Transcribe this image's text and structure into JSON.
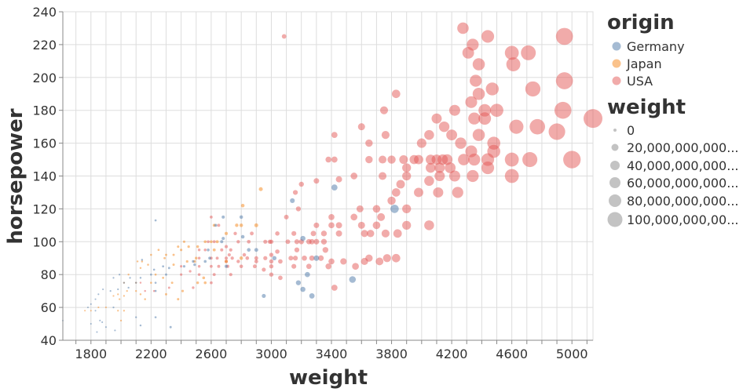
{
  "chart_data": {
    "type": "scatter",
    "xlabel": "weight",
    "ylabel": "horsepower",
    "xlim": [
      1613,
      5140
    ],
    "ylim": [
      40,
      240
    ],
    "x_ticks": [
      "1800",
      "2200",
      "2600",
      "3000",
      "3400",
      "3800",
      "4200",
      "4600",
      "5000"
    ],
    "y_ticks": [
      "40",
      "60",
      "80",
      "100",
      "120",
      "140",
      "160",
      "180",
      "200",
      "220",
      "240"
    ],
    "grid": true,
    "legend_placement": "right",
    "color_legend": {
      "title": "origin",
      "items": [
        {
          "label": "Germany",
          "color": "#4c78a8"
        },
        {
          "label": "Japan",
          "color": "#f58518"
        },
        {
          "label": "USA",
          "color": "#e45756"
        }
      ]
    },
    "size_legend": {
      "title": "weight",
      "items": [
        {
          "label": "0",
          "value": 0
        },
        {
          "label": "20,000,000,000...",
          "value": 20000000000
        },
        {
          "label": "40,000,000,000...",
          "value": 40000000000
        },
        {
          "label": "60,000,000,000...",
          "value": 60000000000
        },
        {
          "label": "80,000,000,000...",
          "value": 80000000000
        },
        {
          "label": "100,000,000,00...",
          "value": 100000000000
        }
      ]
    },
    "series": [
      {
        "name": "USA",
        "color": "#e45756",
        "points": [
          [
            3085,
            225
          ],
          [
            4275,
            230
          ],
          [
            4340,
            220
          ],
          [
            4440,
            225
          ],
          [
            4950,
            225
          ],
          [
            4310,
            215
          ],
          [
            4600,
            215
          ],
          [
            4710,
            215
          ],
          [
            4380,
            208
          ],
          [
            4610,
            208
          ],
          [
            4360,
            198
          ],
          [
            4950,
            198
          ],
          [
            4380,
            190
          ],
          [
            4470,
            193
          ],
          [
            4740,
            193
          ],
          [
            4330,
            185
          ],
          [
            4420,
            180
          ],
          [
            4220,
            180
          ],
          [
            3830,
            190
          ],
          [
            3750,
            180
          ],
          [
            4100,
            175
          ],
          [
            4500,
            180
          ],
          [
            4940,
            180
          ],
          [
            5140,
            175
          ],
          [
            4350,
            175
          ],
          [
            4420,
            175
          ],
          [
            4630,
            170
          ],
          [
            4770,
            170
          ],
          [
            4900,
            167
          ],
          [
            4150,
            170
          ],
          [
            4200,
            165
          ],
          [
            4380,
            165
          ],
          [
            3600,
            170
          ],
          [
            3760,
            165
          ],
          [
            3420,
            165
          ],
          [
            3650,
            160
          ],
          [
            4050,
            165
          ],
          [
            4260,
            160
          ],
          [
            4330,
            155
          ],
          [
            4480,
            160
          ],
          [
            4480,
            155
          ],
          [
            4000,
            160
          ],
          [
            3380,
            150
          ],
          [
            3420,
            150
          ],
          [
            3650,
            150
          ],
          [
            3740,
            150
          ],
          [
            3800,
            150
          ],
          [
            3880,
            150
          ],
          [
            3950,
            150
          ],
          [
            3980,
            150
          ],
          [
            4060,
            150
          ],
          [
            4100,
            150
          ],
          [
            4140,
            150
          ],
          [
            4170,
            150
          ],
          [
            4280,
            150
          ],
          [
            4350,
            150
          ],
          [
            4440,
            150
          ],
          [
            4600,
            150
          ],
          [
            4720,
            150
          ],
          [
            5000,
            150
          ],
          [
            3900,
            145
          ],
          [
            4060,
            145
          ],
          [
            4120,
            145
          ],
          [
            4190,
            145
          ],
          [
            4440,
            145
          ],
          [
            4600,
            140
          ],
          [
            3550,
            140
          ],
          [
            3740,
            140
          ],
          [
            3900,
            140
          ],
          [
            4050,
            137
          ],
          [
            4120,
            140
          ],
          [
            4220,
            140
          ],
          [
            4340,
            140
          ],
          [
            3200,
            135
          ],
          [
            3300,
            137
          ],
          [
            3450,
            138
          ],
          [
            3860,
            135
          ],
          [
            3830,
            130
          ],
          [
            3980,
            130
          ],
          [
            4110,
            130
          ],
          [
            4240,
            130
          ],
          [
            3160,
            130
          ],
          [
            3180,
            120
          ],
          [
            3590,
            120
          ],
          [
            3700,
            120
          ],
          [
            3800,
            125
          ],
          [
            3900,
            120
          ],
          [
            3100,
            115
          ],
          [
            3400,
            115
          ],
          [
            3550,
            115
          ],
          [
            3730,
            115
          ],
          [
            2600,
            115
          ],
          [
            2650,
            110
          ],
          [
            3300,
            110
          ],
          [
            3400,
            110
          ],
          [
            3450,
            110
          ],
          [
            3600,
            110
          ],
          [
            3700,
            110
          ],
          [
            3900,
            110
          ],
          [
            4050,
            110
          ],
          [
            3840,
            105
          ],
          [
            3760,
            105
          ],
          [
            3660,
            105
          ],
          [
            3620,
            105
          ],
          [
            3450,
            105
          ],
          [
            3350,
            105
          ],
          [
            3280,
            105
          ],
          [
            3150,
            105
          ],
          [
            3040,
            105
          ],
          [
            3350,
            100
          ],
          [
            3300,
            100
          ],
          [
            3270,
            100
          ],
          [
            3250,
            100
          ],
          [
            3200,
            100
          ],
          [
            3170,
            100
          ],
          [
            3110,
            100
          ],
          [
            3000,
            100
          ],
          [
            2960,
            100
          ],
          [
            2850,
            100
          ],
          [
            2780,
            100
          ],
          [
            2760,
            105
          ],
          [
            2870,
            105
          ],
          [
            2730,
            95
          ],
          [
            2700,
            97
          ],
          [
            2620,
            100
          ],
          [
            2580,
            100
          ],
          [
            2560,
            95
          ],
          [
            2520,
            95
          ],
          [
            2520,
            90
          ],
          [
            2600,
            90
          ],
          [
            2640,
            90
          ],
          [
            2670,
            95
          ],
          [
            2700,
            90
          ],
          [
            2740,
            90
          ],
          [
            2780,
            88
          ],
          [
            2840,
            90
          ],
          [
            2900,
            88
          ],
          [
            2960,
            90
          ],
          [
            3000,
            88
          ],
          [
            3060,
            88
          ],
          [
            3130,
            90
          ],
          [
            3160,
            90
          ],
          [
            3220,
            90
          ],
          [
            3270,
            90
          ],
          [
            3330,
            90
          ],
          [
            3400,
            88
          ],
          [
            3480,
            88
          ],
          [
            3560,
            85
          ],
          [
            3650,
            90
          ],
          [
            3720,
            88
          ],
          [
            3770,
            90
          ],
          [
            3830,
            90
          ],
          [
            3380,
            85
          ],
          [
            3250,
            85
          ],
          [
            3150,
            85
          ],
          [
            3000,
            85
          ],
          [
            2950,
            83
          ],
          [
            2890,
            85
          ],
          [
            2800,
            85
          ],
          [
            2710,
            85
          ],
          [
            2650,
            85
          ],
          [
            2600,
            85
          ],
          [
            2520,
            85
          ],
          [
            2460,
            82
          ],
          [
            2400,
            85
          ],
          [
            2400,
            80
          ],
          [
            2520,
            80
          ],
          [
            2620,
            80
          ],
          [
            2730,
            80
          ],
          [
            3000,
            80
          ],
          [
            3060,
            78
          ],
          [
            3420,
            72
          ],
          [
            2480,
            72
          ],
          [
            2130,
            75
          ],
          [
            2160,
            70
          ],
          [
            2220,
            70
          ],
          [
            2320,
            72
          ],
          [
            2600,
            75
          ],
          [
            2700,
            88
          ],
          [
            2720,
            92
          ],
          [
            2990,
            100
          ],
          [
            3170,
            95
          ],
          [
            3620,
            88
          ],
          [
            3360,
            95
          ],
          [
            3000,
            92
          ],
          [
            2900,
            90
          ],
          [
            2820,
            92
          ],
          [
            3040,
            94
          ]
        ]
      },
      {
        "name": "Japan",
        "color": "#f58518",
        "points": [
          [
            2930,
            132
          ],
          [
            2810,
            122
          ],
          [
            2800,
            110
          ],
          [
            2620,
            110
          ],
          [
            2900,
            110
          ],
          [
            2770,
            110
          ],
          [
            2450,
            97
          ],
          [
            2380,
            97
          ],
          [
            2400,
            95
          ],
          [
            2510,
            97
          ],
          [
            2250,
            95
          ],
          [
            2300,
            92
          ],
          [
            2420,
            100
          ],
          [
            2560,
            100
          ],
          [
            2110,
            88
          ],
          [
            2140,
            88
          ],
          [
            2200,
            92
          ],
          [
            2290,
            90
          ],
          [
            2350,
            92
          ],
          [
            2600,
            100
          ],
          [
            2640,
            100
          ],
          [
            2490,
            88
          ],
          [
            2350,
            86
          ],
          [
            2180,
            86
          ],
          [
            2130,
            84
          ],
          [
            2050,
            80
          ],
          [
            2020,
            75
          ],
          [
            2100,
            75
          ],
          [
            2230,
            80
          ],
          [
            2280,
            78
          ],
          [
            2340,
            75
          ],
          [
            2410,
            70
          ],
          [
            2510,
            75
          ],
          [
            2560,
            75
          ],
          [
            2700,
            88
          ],
          [
            2800,
            90
          ],
          [
            2040,
            70
          ],
          [
            1980,
            68
          ],
          [
            1950,
            67
          ],
          [
            1990,
            65
          ],
          [
            2020,
            67
          ],
          [
            2100,
            70
          ],
          [
            2130,
            68
          ],
          [
            2200,
            75
          ],
          [
            1900,
            60
          ],
          [
            1850,
            60
          ],
          [
            1800,
            58
          ],
          [
            1760,
            58
          ],
          [
            1980,
            58
          ],
          [
            2020,
            58
          ],
          [
            2000,
            52
          ],
          [
            2160,
            65
          ],
          [
            2300,
            68
          ],
          [
            2380,
            65
          ],
          [
            2550,
            78
          ],
          [
            2700,
            105
          ],
          [
            2620,
            95
          ],
          [
            2500,
            90
          ],
          [
            2440,
            88
          ]
        ]
      },
      {
        "name": "Germany",
        "color": "#4c78a8",
        "points": [
          [
            2230,
            113
          ],
          [
            2800,
            115
          ],
          [
            2680,
            115
          ],
          [
            2630,
            110
          ],
          [
            2680,
            102
          ],
          [
            2810,
            103
          ],
          [
            3140,
            125
          ],
          [
            3420,
            133
          ],
          [
            3820,
            120
          ],
          [
            3210,
            102
          ],
          [
            3240,
            80
          ],
          [
            3180,
            75
          ],
          [
            3210,
            71
          ],
          [
            3270,
            67
          ],
          [
            3540,
            77
          ],
          [
            2950,
            67
          ],
          [
            3020,
            90
          ],
          [
            2900,
            95
          ],
          [
            2850,
            95
          ],
          [
            3300,
            90
          ],
          [
            2670,
            100
          ],
          [
            2590,
            90
          ],
          [
            2560,
            88
          ],
          [
            2490,
            86
          ],
          [
            2420,
            85
          ],
          [
            2320,
            84
          ],
          [
            2280,
            85
          ],
          [
            2200,
            80
          ],
          [
            2130,
            78
          ],
          [
            2230,
            75
          ],
          [
            2230,
            70
          ],
          [
            2100,
            75
          ],
          [
            2060,
            78
          ],
          [
            2020,
            75
          ],
          [
            1990,
            80
          ],
          [
            1950,
            78
          ],
          [
            1930,
            70
          ],
          [
            1880,
            71
          ],
          [
            1850,
            68
          ],
          [
            1830,
            65
          ],
          [
            1800,
            62
          ],
          [
            1780,
            60
          ],
          [
            1830,
            58
          ],
          [
            1860,
            52
          ],
          [
            1800,
            50
          ],
          [
            1900,
            48
          ],
          [
            1960,
            46
          ],
          [
            2100,
            54
          ],
          [
            2130,
            49
          ],
          [
            2230,
            54
          ],
          [
            2330,
            48
          ],
          [
            1840,
            45
          ],
          [
            1875,
            51
          ],
          [
            1950,
            60
          ],
          [
            1980,
            71
          ],
          [
            2050,
            72
          ],
          [
            2140,
            89
          ],
          [
            2220,
            83
          ],
          [
            2300,
            80
          ],
          [
            2480,
            88
          ],
          [
            2580,
            95
          ],
          [
            2700,
            85
          ],
          [
            1613,
            52
          ]
        ]
      }
    ]
  }
}
